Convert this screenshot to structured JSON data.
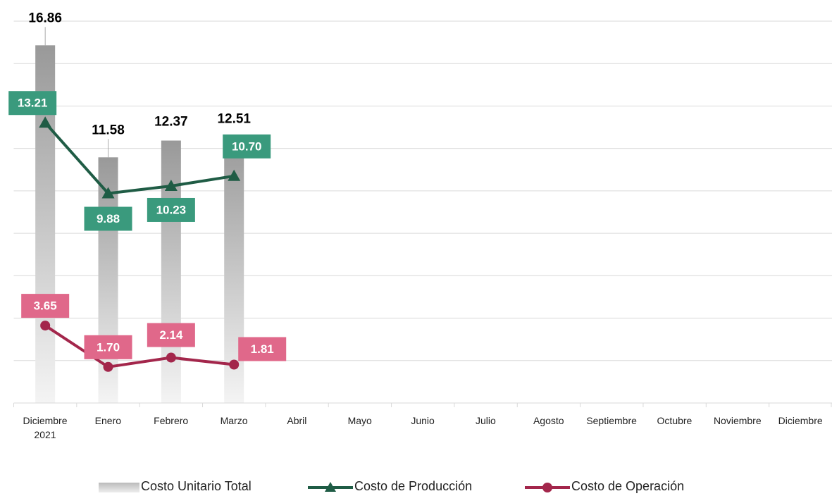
{
  "chart_data": {
    "type": "bar",
    "categories": [
      "Diciembre 2021",
      "Enero",
      "Febrero",
      "Marzo",
      "Abril",
      "Mayo",
      "Junio",
      "Julio",
      "Agosto",
      "Septiembre",
      "Octubre",
      "Noviembre",
      "Diciembre"
    ],
    "series": [
      {
        "name": "Costo Unitario Total",
        "type": "bar",
        "color": "#a0a0a0",
        "values": [
          16.86,
          11.58,
          12.37,
          12.51,
          null,
          null,
          null,
          null,
          null,
          null,
          null,
          null,
          null
        ]
      },
      {
        "name": "Costo de Producción",
        "type": "line",
        "marker": "triangle",
        "color": "#1f5c45",
        "label_color": "#3a9a7d",
        "values": [
          13.21,
          9.88,
          10.23,
          10.7,
          null,
          null,
          null,
          null,
          null,
          null,
          null,
          null,
          null
        ],
        "value_labels": [
          "13.21",
          "9.88",
          "10.23",
          "10.70",
          null,
          null,
          null,
          null,
          null,
          null,
          null,
          null,
          null
        ]
      },
      {
        "name": "Costo de Operación",
        "type": "line",
        "marker": "circle",
        "color": "#a3264b",
        "label_color": "#e0688a",
        "values": [
          3.65,
          1.7,
          2.14,
          1.81,
          null,
          null,
          null,
          null,
          null,
          null,
          null,
          null,
          null
        ],
        "value_labels": [
          "3.65",
          "1.70",
          "2.14",
          "1.81",
          null,
          null,
          null,
          null,
          null,
          null,
          null,
          null,
          null
        ]
      }
    ],
    "ylim": [
      0,
      18
    ],
    "yticks": [
      0,
      2,
      4,
      6,
      8,
      10,
      12,
      14,
      16,
      18
    ],
    "grid": true,
    "legend": "bottom"
  }
}
